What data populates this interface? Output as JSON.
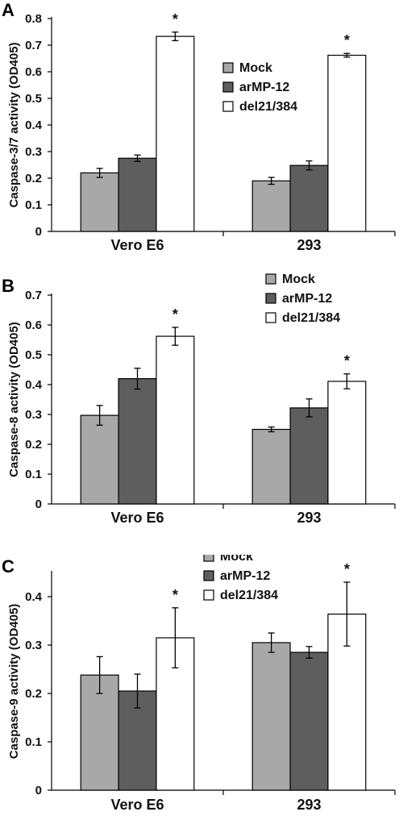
{
  "chart_data": [
    {
      "type": "bar",
      "panel_label": "A",
      "ylabel": "Caspase-3/7 activity (OD405)",
      "xlabel": "",
      "categories": [
        "Vero E6",
        "293"
      ],
      "ylim": [
        0,
        0.8
      ],
      "yticks": [
        "0",
        "0.1",
        "0.2",
        "0.3",
        "0.4",
        "0.5",
        "0.6",
        "0.7",
        "0.8"
      ],
      "series": [
        {
          "name": "Mock",
          "color": "#a8a8a8",
          "values": [
            0.22,
            0.19
          ],
          "errors": [
            0.017,
            0.013
          ]
        },
        {
          "name": "arMP-12",
          "color": "#5e5e5e",
          "values": [
            0.275,
            0.248
          ],
          "errors": [
            0.012,
            0.017
          ]
        },
        {
          "name": "del21/384",
          "color": "#ffffff",
          "values": [
            0.733,
            0.662
          ],
          "errors": [
            0.016,
            0.007
          ]
        }
      ],
      "significance": [
        "*",
        "*"
      ],
      "legend_position": "right"
    },
    {
      "type": "bar",
      "panel_label": "B",
      "ylabel": "Caspase-8 activity (OD405)",
      "xlabel": "",
      "categories": [
        "Vero E6",
        "293"
      ],
      "ylim": [
        0,
        0.7
      ],
      "yticks": [
        "0",
        "0.1",
        "0.2",
        "0.3",
        "0.4",
        "0.5",
        "0.6",
        "0.7"
      ],
      "series": [
        {
          "name": "Mock",
          "color": "#a8a8a8",
          "values": [
            0.297,
            0.25
          ],
          "errors": [
            0.033,
            0.008
          ]
        },
        {
          "name": "arMP-12",
          "color": "#5e5e5e",
          "values": [
            0.42,
            0.322
          ],
          "errors": [
            0.035,
            0.03
          ]
        },
        {
          "name": "del21/384",
          "color": "#ffffff",
          "values": [
            0.562,
            0.411
          ],
          "errors": [
            0.03,
            0.025
          ]
        }
      ],
      "significance": [
        "*",
        "*"
      ],
      "legend_position": "top-right"
    },
    {
      "type": "bar",
      "panel_label": "C",
      "ylabel": "Caspase-9 activity (OD405)",
      "xlabel": "",
      "categories": [
        "Vero E6",
        "293"
      ],
      "ylim": [
        0,
        0.45
      ],
      "yticks": [
        "0",
        "0.1",
        "0.2",
        "0.3",
        "0.4"
      ],
      "series": [
        {
          "name": "Mock",
          "color": "#a8a8a8",
          "values": [
            0.238,
            0.305
          ],
          "errors": [
            0.038,
            0.02
          ]
        },
        {
          "name": "arMP-12",
          "color": "#5e5e5e",
          "values": [
            0.205,
            0.285
          ],
          "errors": [
            0.035,
            0.012
          ]
        },
        {
          "name": "del21/384",
          "color": "#ffffff",
          "values": [
            0.315,
            0.364
          ],
          "errors": [
            0.062,
            0.066
          ]
        }
      ],
      "significance": [
        "*",
        "*"
      ],
      "legend_position": "top-right"
    }
  ]
}
